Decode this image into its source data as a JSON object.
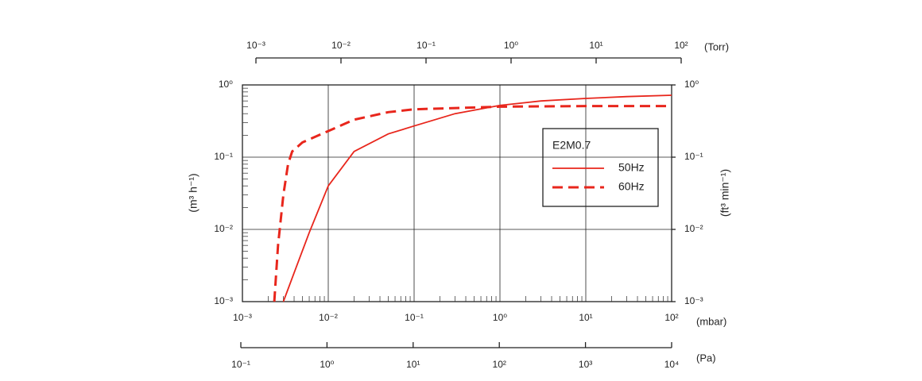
{
  "chart_data": {
    "type": "line",
    "xlabel": "(mbar)",
    "ylabel": "(m³ h⁻¹)",
    "y2label": "(ft³ min⁻¹)",
    "xscale": "log",
    "yscale": "log",
    "grid": true,
    "xlim": [
      0.001,
      100
    ],
    "xticks": [
      {
        "value": 0.001,
        "label": "10⁻³"
      },
      {
        "value": 0.01,
        "label": "10⁻²"
      },
      {
        "value": 0.1,
        "label": "10⁻¹"
      },
      {
        "value": 1,
        "label": "10⁰"
      },
      {
        "value": 10,
        "label": "10¹"
      },
      {
        "value": 100,
        "label": "10²"
      }
    ],
    "ylim": [
      0.001,
      1
    ],
    "yticks": [
      {
        "value": 0.001,
        "label": "10⁻³"
      },
      {
        "value": 0.01,
        "label": "10⁻²"
      },
      {
        "value": 0.1,
        "label": "10⁻¹"
      },
      {
        "value": 1,
        "label": "10⁰"
      }
    ],
    "y2ticks": [
      {
        "value": 0.001,
        "label": "10⁻³"
      },
      {
        "value": 0.01,
        "label": "10⁻²"
      },
      {
        "value": 0.1,
        "label": "10⁻¹"
      },
      {
        "value": 1,
        "label": "10⁰"
      }
    ],
    "top_axis": {
      "label": "(Torr)",
      "xlim": [
        0.001,
        100
      ],
      "xticks": [
        {
          "value": 0.001,
          "label": "10⁻³"
        },
        {
          "value": 0.01,
          "label": "10⁻²"
        },
        {
          "value": 0.1,
          "label": "10⁻¹"
        },
        {
          "value": 1,
          "label": "10⁰"
        },
        {
          "value": 10,
          "label": "10¹"
        },
        {
          "value": 100,
          "label": "10²"
        }
      ]
    },
    "pa_axis": {
      "label": "(Pa)",
      "xlim": [
        0.1,
        10000
      ],
      "xticks": [
        {
          "value": 0.1,
          "label": "10⁻¹"
        },
        {
          "value": 1,
          "label": "10⁰"
        },
        {
          "value": 10,
          "label": "10¹"
        },
        {
          "value": 100,
          "label": "10²"
        },
        {
          "value": 1000,
          "label": "10³"
        },
        {
          "value": 10000,
          "label": "10⁴"
        }
      ]
    },
    "legend_title": "E2M0.7",
    "legend_position": "center right",
    "series": [
      {
        "name": "50Hz",
        "color": "#e8261c",
        "dash": "solid",
        "x": [
          0.003,
          0.004,
          0.006,
          0.01,
          0.02,
          0.05,
          0.1,
          0.3,
          1,
          3,
          10,
          30,
          100
        ],
        "values": [
          0.001,
          0.0025,
          0.009,
          0.04,
          0.12,
          0.21,
          0.27,
          0.4,
          0.52,
          0.6,
          0.65,
          0.69,
          0.72
        ]
      },
      {
        "name": "60Hz",
        "color": "#e8261c",
        "dash": "dashed",
        "x": [
          0.00235,
          0.0026,
          0.003,
          0.0034,
          0.0038,
          0.005,
          0.01,
          0.02,
          0.05,
          0.1,
          1,
          10,
          100
        ],
        "values": [
          0.001,
          0.006,
          0.03,
          0.08,
          0.12,
          0.16,
          0.23,
          0.33,
          0.42,
          0.46,
          0.5,
          0.51,
          0.51
        ]
      }
    ]
  }
}
